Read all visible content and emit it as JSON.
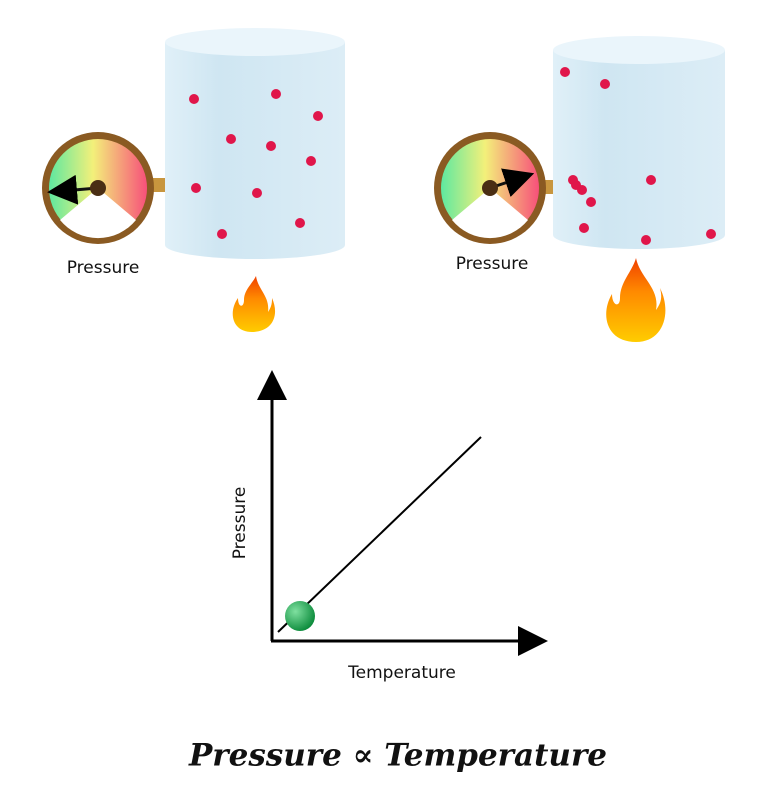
{
  "gauges": [
    {
      "label": "Pressure"
    },
    {
      "label": "Pressure"
    }
  ],
  "graph": {
    "y_label": "Pressure",
    "x_label": "Temperature"
  },
  "formula": "Pressure ∝ Temperature"
}
